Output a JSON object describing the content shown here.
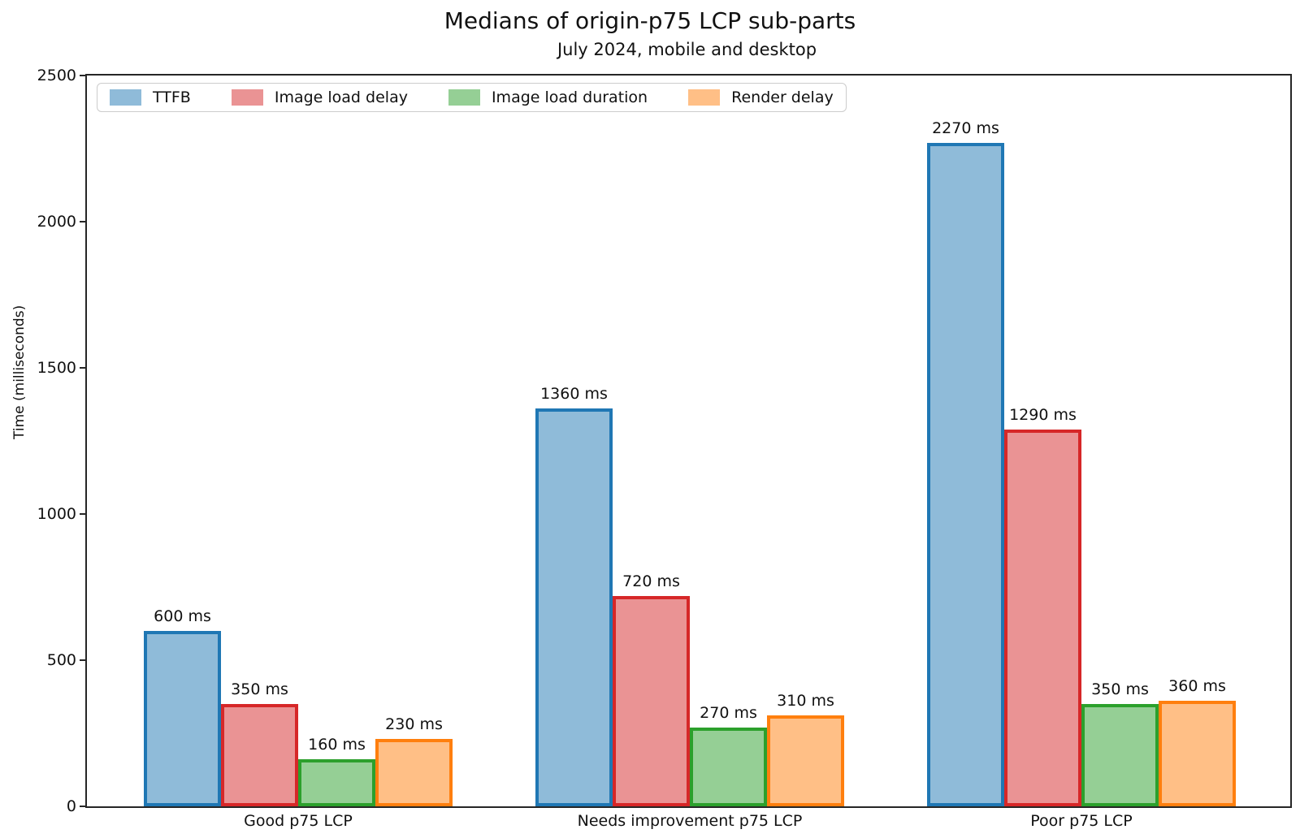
{
  "figure": {
    "title": "Medians of origin-p75 LCP sub-parts",
    "subtitle": "July 2024, mobile and desktop"
  },
  "chart_data": {
    "type": "bar",
    "title": "Medians of origin-p75 LCP sub-parts",
    "subtitle": "July 2024, mobile and desktop",
    "categories": [
      "Good p75 LCP",
      "Needs improvement p75 LCP",
      "Poor p75 LCP"
    ],
    "series": [
      {
        "name": "TTFB",
        "values": [
          600,
          1360,
          2270
        ],
        "fill": "#8FBBD9",
        "edge": "#1F77B4"
      },
      {
        "name": "Image load delay",
        "values": [
          350,
          720,
          1290
        ],
        "fill": "#EA9394",
        "edge": "#D62728"
      },
      {
        "name": "Image load duration",
        "values": [
          160,
          270,
          350
        ],
        "fill": "#95CF95",
        "edge": "#2CA02C"
      },
      {
        "name": "Render delay",
        "values": [
          230,
          310,
          360
        ],
        "fill": "#FFBF86",
        "edge": "#FF7F0E"
      }
    ],
    "value_label_unit": "ms",
    "xlabel": "",
    "ylabel": "Time (milliseconds)",
    "ylim": [
      0,
      2500
    ],
    "yticks": [
      0,
      500,
      1000,
      1500,
      2000,
      2500
    ],
    "grid": false,
    "legend_position": "upper left",
    "axis_color": "#262626",
    "text_color": "#111111"
  }
}
